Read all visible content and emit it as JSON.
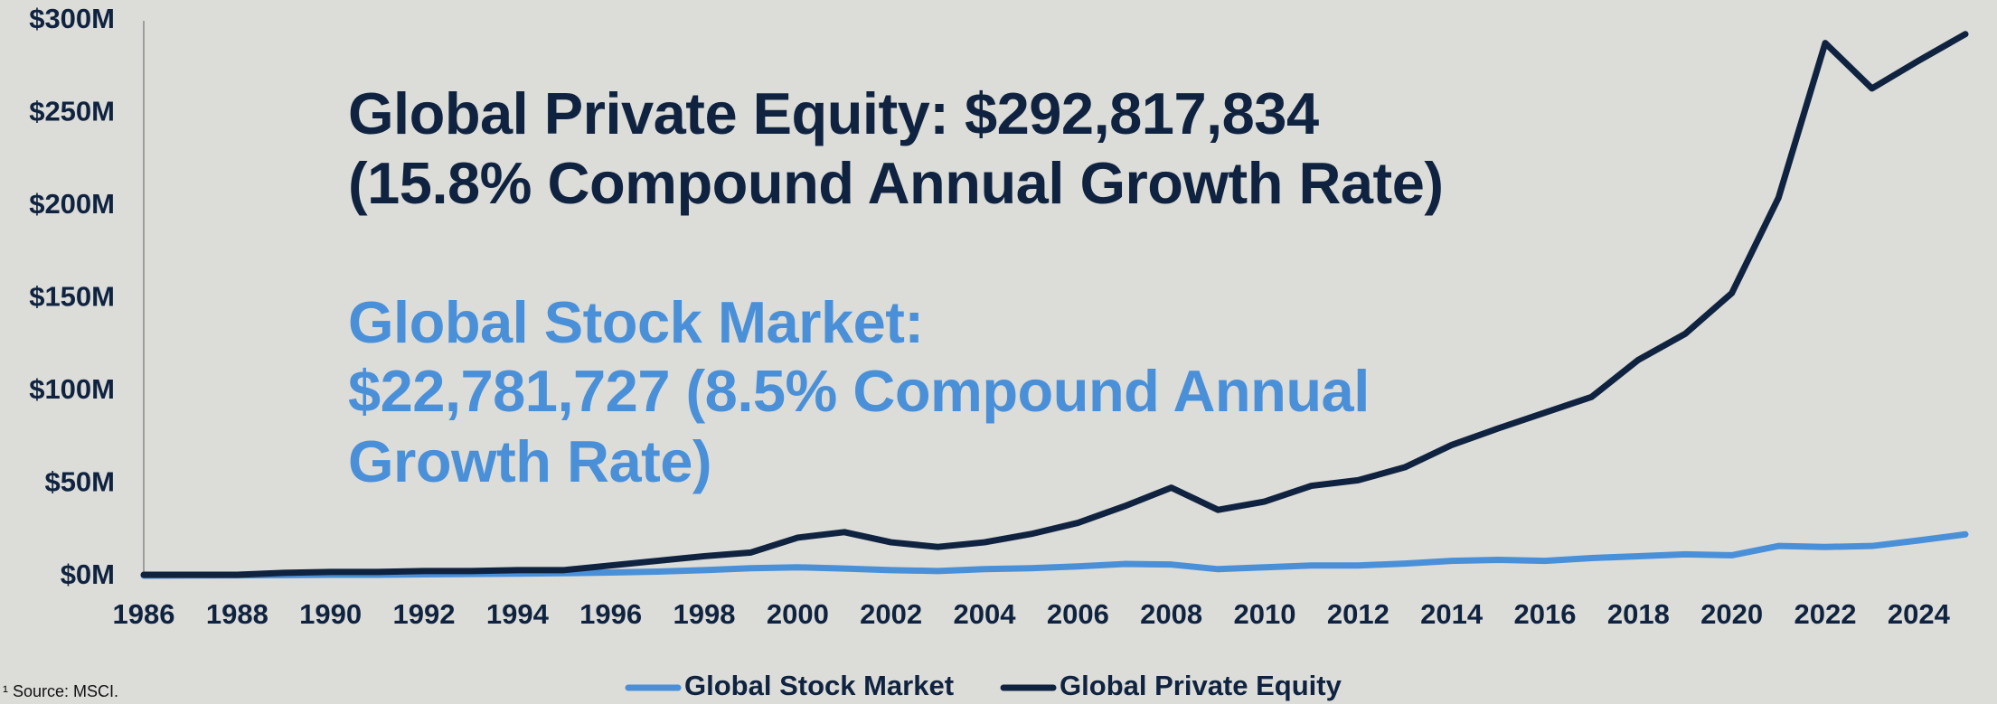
{
  "chart_data": {
    "type": "line",
    "annotations": [
      {
        "text": [
          "Global Private Equity: $292,817,834",
          "(15.8% Compound Annual Growth Rate)"
        ],
        "color": "#0f2340"
      },
      {
        "text": [
          "Global Stock Market:",
          "$22,781,727 (8.5% Compound Annual",
          "Growth Rate)"
        ],
        "color": "#4a90d9"
      }
    ],
    "source": "¹ Source: MSCI.",
    "x": [
      1986,
      1987,
      1988,
      1989,
      1990,
      1991,
      1992,
      1993,
      1994,
      1995,
      1996,
      1997,
      1998,
      1999,
      2000,
      2001,
      2002,
      2003,
      2004,
      2005,
      2006,
      2007,
      2008,
      2009,
      2010,
      2011,
      2012,
      2013,
      2014,
      2015,
      2016,
      2017,
      2018,
      2019,
      2020,
      2021,
      2022,
      2023,
      2024,
      2025
    ],
    "series": [
      {
        "name": "Global Stock Market",
        "color": "#4a90d9",
        "values": [
          0.5,
          0.6,
          0.7,
          0.8,
          1,
          1,
          1.2,
          1.4,
          1.6,
          1.8,
          2.2,
          2.7,
          3.5,
          4.5,
          5,
          4.3,
          3.5,
          3,
          4,
          4.5,
          5.5,
          6.8,
          6.5,
          4,
          5,
          6,
          6,
          7,
          8.5,
          9,
          8.5,
          10,
          11,
          12,
          11.5,
          16.5,
          16,
          16.5,
          19.5,
          22.8
        ]
      },
      {
        "name": "Global Private Equity",
        "color": "#0f2340",
        "values": [
          1,
          1,
          1,
          2,
          2.5,
          2.5,
          3,
          3,
          3.5,
          3.5,
          6,
          8.5,
          11,
          13,
          21,
          24,
          18.5,
          16,
          18.5,
          23,
          29,
          38,
          48,
          36,
          40.5,
          49,
          52,
          59,
          71,
          80,
          88.5,
          97,
          117,
          131,
          153,
          204.5,
          288,
          263.5,
          278.5,
          292.8
        ]
      }
    ],
    "xlim": [
      1986,
      2025
    ],
    "xticks": [
      1986,
      1988,
      1990,
      1992,
      1994,
      1996,
      1998,
      2000,
      2002,
      2004,
      2006,
      2008,
      2010,
      2012,
      2014,
      2016,
      2018,
      2020,
      2022,
      2024
    ],
    "ylim": [
      0,
      300
    ],
    "yticks": [
      {
        "value": 0,
        "label": "$0M"
      },
      {
        "value": 50,
        "label": "$50M"
      },
      {
        "value": 100,
        "label": "$100M"
      },
      {
        "value": 150,
        "label": "$150M"
      },
      {
        "value": 200,
        "label": "$200M"
      },
      {
        "value": 250,
        "label": "$250M"
      },
      {
        "value": 300,
        "label": "$300M"
      }
    ],
    "legend": "bottom"
  }
}
